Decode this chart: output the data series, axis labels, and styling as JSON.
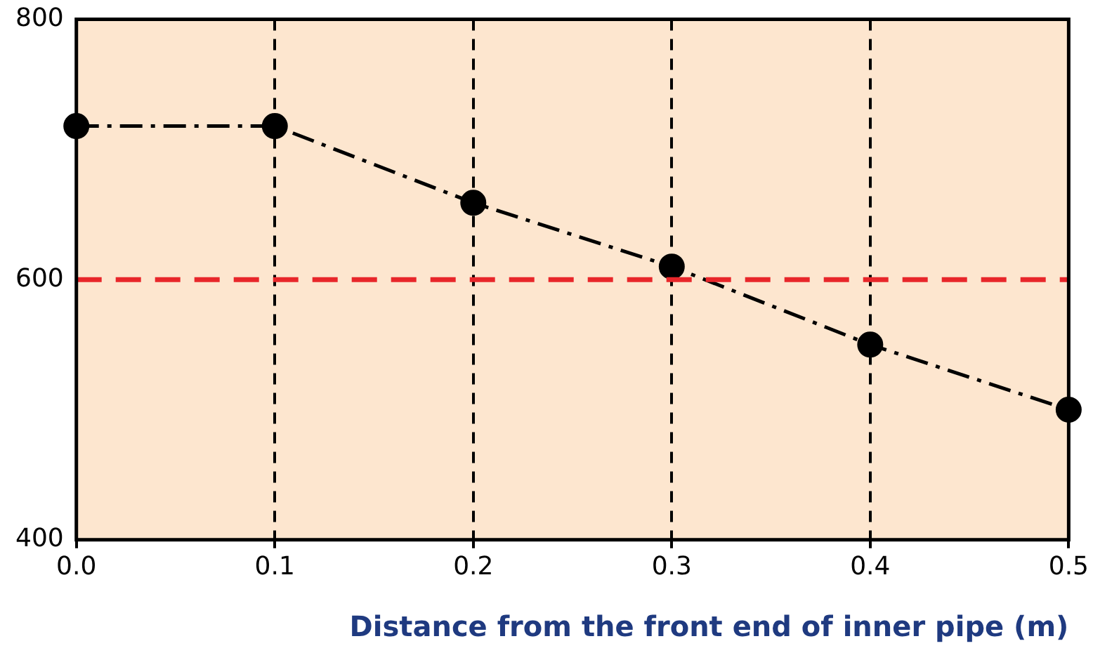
{
  "chart_data": {
    "type": "line",
    "xlabel": "Distance from the front end of inner pipe (m)",
    "x": [
      0,
      0.1,
      0.2,
      0.3,
      0.4,
      0.5
    ],
    "series": [
      {
        "color": "#000000",
        "values": [
          718,
          718,
          659,
          610,
          550,
          500
        ]
      }
    ],
    "xlim": [
      0,
      0.5
    ],
    "xticks": [
      {
        "value": 0,
        "label": "0.0"
      },
      {
        "value": 0.1,
        "label": "0.1"
      },
      {
        "value": 0.2,
        "label": "0.2"
      },
      {
        "value": 0.3,
        "label": "0.3"
      },
      {
        "value": 0.4,
        "label": "0.4"
      },
      {
        "value": 0.5,
        "label": "0.5"
      }
    ],
    "ylim": [
      400,
      800
    ],
    "yticks": [
      400,
      600,
      800
    ],
    "ref_lines": [
      {
        "axis": "y",
        "value": 600,
        "color": "#e8262a",
        "line_style": "dashed"
      }
    ],
    "grid": "x",
    "legend": false,
    "marker": "circle",
    "line_style": "dashed"
  }
}
